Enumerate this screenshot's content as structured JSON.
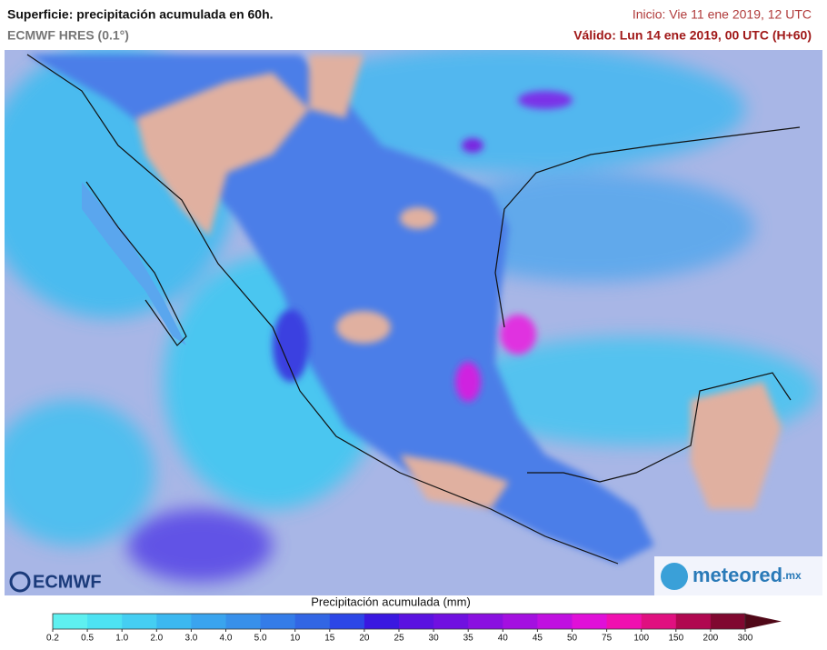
{
  "header": {
    "title": "Superficie: precipitación acumulada en 60h.",
    "model": "ECMWF HRES (0.1°)",
    "init": "Inicio: Vie 11 ene 2019, 12 UTC",
    "valid": "Válido: Lun 14 ene 2019, 00 UTC (H+60)"
  },
  "logos": {
    "left": "ECMWF",
    "right": "meteored",
    "right_suffix": ".mx"
  },
  "legend": {
    "title": "Precipitación acumulada (mm)",
    "ticks": [
      "0.2",
      "0.5",
      "1.0",
      "2.0",
      "3.0",
      "4.0",
      "5.0",
      "10",
      "15",
      "20",
      "25",
      "30",
      "35",
      "40",
      "45",
      "50",
      "75",
      "100",
      "150",
      "200",
      "300"
    ],
    "colors": [
      "#5ef0f0",
      "#4de2f2",
      "#45cef2",
      "#3cb8f0",
      "#3aa4ee",
      "#3890ea",
      "#347ce8",
      "#3266e4",
      "#2c46e6",
      "#3a18e0",
      "#5a12e0",
      "#7010e0",
      "#8a10e0",
      "#a410e0",
      "#c010e0",
      "#e010d8",
      "#f010b0",
      "#e01080",
      "#b00850",
      "#800830"
    ],
    "arrow_color": "#500818"
  }
}
